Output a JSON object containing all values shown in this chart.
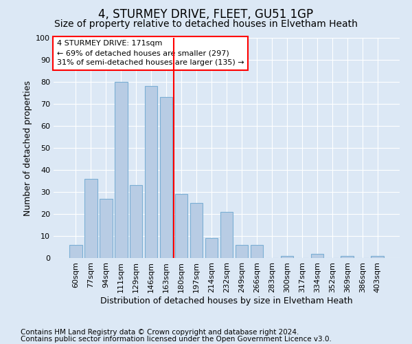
{
  "title": "4, STURMEY DRIVE, FLEET, GU51 1GP",
  "subtitle": "Size of property relative to detached houses in Elvetham Heath",
  "xlabel": "Distribution of detached houses by size in Elvetham Heath",
  "ylabel": "Number of detached properties",
  "categories": [
    "60sqm",
    "77sqm",
    "94sqm",
    "111sqm",
    "129sqm",
    "146sqm",
    "163sqm",
    "180sqm",
    "197sqm",
    "214sqm",
    "232sqm",
    "249sqm",
    "266sqm",
    "283sqm",
    "300sqm",
    "317sqm",
    "334sqm",
    "352sqm",
    "369sqm",
    "386sqm",
    "403sqm"
  ],
  "values": [
    6,
    36,
    27,
    80,
    33,
    78,
    73,
    29,
    25,
    9,
    21,
    6,
    6,
    0,
    1,
    0,
    2,
    0,
    1,
    0,
    1
  ],
  "bar_color": "#b8cce4",
  "bar_edge_color": "#7bafd4",
  "vline_x_index": 6.5,
  "vline_color": "red",
  "ylim": [
    0,
    100
  ],
  "yticks": [
    0,
    10,
    20,
    30,
    40,
    50,
    60,
    70,
    80,
    90,
    100
  ],
  "annotation_title": "4 STURMEY DRIVE: 171sqm",
  "annotation_line1": "← 69% of detached houses are smaller (297)",
  "annotation_line2": "31% of semi-detached houses are larger (135) →",
  "annotation_box_color": "red",
  "footnote1": "Contains HM Land Registry data © Crown copyright and database right 2024.",
  "footnote2": "Contains public sector information licensed under the Open Government Licence v3.0.",
  "background_color": "#dce8f5",
  "plot_bg_color": "#dce8f5",
  "title_fontsize": 12,
  "subtitle_fontsize": 10,
  "xlabel_fontsize": 9,
  "ylabel_fontsize": 9,
  "tick_fontsize": 8,
  "footnote_fontsize": 7.5
}
